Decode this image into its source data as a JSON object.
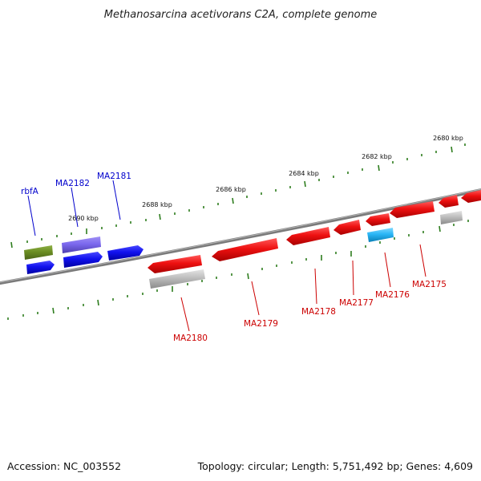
{
  "title": "Methanosarcina acetivorans C2A, complete genome",
  "footer": {
    "accession": "Accession: NC_003552",
    "topology": "Topology: circular; Length: 5,751,492 bp; Genes: 4,609"
  },
  "scale_labels": [
    "2680 kbp",
    "2682 kbp",
    "2684 kbp",
    "2686 kbp",
    "2688 kbp",
    "2690 kbp"
  ],
  "genes": [
    {
      "name": "rbfA",
      "strand": "forward",
      "color": "#3333cc"
    },
    {
      "name": "MA2182",
      "strand": "forward",
      "color": "#3333cc"
    },
    {
      "name": "MA2181",
      "strand": "forward",
      "color": "#3333cc"
    },
    {
      "name": "MA2180",
      "strand": "reverse",
      "color": "#cc0000"
    },
    {
      "name": "MA2179",
      "strand": "reverse",
      "color": "#cc0000"
    },
    {
      "name": "MA2178",
      "strand": "reverse",
      "color": "#cc0000"
    },
    {
      "name": "MA2177",
      "strand": "reverse",
      "color": "#cc0000"
    },
    {
      "name": "MA2176",
      "strand": "reverse",
      "color": "#cc0000"
    },
    {
      "name": "MA2175",
      "strand": "reverse",
      "color": "#cc0000"
    }
  ],
  "colors": {
    "backbone": "#7a7a7a",
    "tick": "#2e7d1e",
    "reverse_gene": "#ee1111",
    "forward_gene": "#1111ee",
    "rrna": "#6b8e23",
    "highlight": "#7b68ee",
    "cyan_feature": "#29b6f6",
    "gray_feature": "#bdbdbd"
  }
}
